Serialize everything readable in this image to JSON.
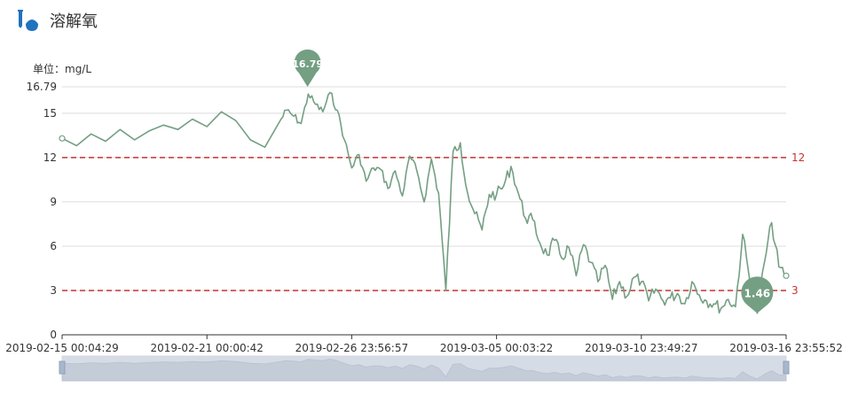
{
  "header": {
    "title": "溶解氧",
    "icon": "test-tube-drop-icon"
  },
  "chart_data": {
    "type": "line",
    "unit_label": "单位：mg/L",
    "ylim": [
      0,
      16.79
    ],
    "yticks": [
      "0",
      "3",
      "6",
      "9",
      "12",
      "15",
      "16.79"
    ],
    "xticks": [
      "2019-02-15 00:04:29",
      "2019-02-21 00:00:42",
      "2019-02-26 23:56:57",
      "2019-03-05 00:03:22",
      "2019-03-10 23:49:27",
      "2019-03-16 23:55:52"
    ],
    "grid": true,
    "series": [
      {
        "color": "#749f83",
        "x": [
          0.0,
          0.02,
          0.04,
          0.06,
          0.08,
          0.1,
          0.12,
          0.14,
          0.16,
          0.18,
          0.2,
          0.22,
          0.24,
          0.26,
          0.28,
          0.3,
          0.31,
          0.32,
          0.33,
          0.34,
          0.35,
          0.36,
          0.37,
          0.38,
          0.39,
          0.4,
          0.41,
          0.42,
          0.43,
          0.44,
          0.45,
          0.46,
          0.47,
          0.48,
          0.49,
          0.5,
          0.51,
          0.52,
          0.53,
          0.54,
          0.55,
          0.56,
          0.57,
          0.58,
          0.59,
          0.6,
          0.61,
          0.62,
          0.63,
          0.64,
          0.65,
          0.66,
          0.67,
          0.68,
          0.69,
          0.7,
          0.71,
          0.72,
          0.73,
          0.74,
          0.75,
          0.76,
          0.77,
          0.78,
          0.79,
          0.8,
          0.81,
          0.82,
          0.83,
          0.84,
          0.85,
          0.86,
          0.87,
          0.88,
          0.89,
          0.9,
          0.91,
          0.92,
          0.93,
          0.94,
          0.95,
          0.96,
          0.97,
          0.98,
          0.99,
          1.0
        ],
        "y": [
          13.3,
          12.8,
          13.6,
          13.1,
          13.9,
          13.2,
          13.8,
          14.2,
          13.9,
          14.6,
          14.1,
          15.1,
          14.5,
          13.2,
          12.7,
          14.4,
          15.2,
          14.8,
          14.3,
          16.3,
          15.6,
          15.1,
          16.4,
          15.2,
          13.2,
          11.3,
          12.2,
          10.4,
          11.3,
          11.2,
          9.9,
          11.1,
          9.4,
          12.1,
          11.1,
          9.0,
          11.9,
          9.6,
          3.0,
          12.4,
          13.0,
          9.6,
          8.2,
          7.1,
          9.5,
          9.5,
          10.1,
          11.4,
          9.6,
          7.9,
          7.8,
          6.2,
          5.4,
          6.4,
          5.2,
          5.9,
          4.0,
          6.1,
          4.9,
          3.6,
          4.7,
          2.4,
          3.6,
          2.6,
          3.9,
          3.6,
          2.3,
          3.1,
          2.3,
          2.5,
          2.8,
          2.1,
          3.6,
          2.7,
          2.3,
          2.1,
          1.8,
          2.4,
          1.9,
          6.8,
          3.6,
          1.46,
          4.9,
          7.6,
          4.6,
          4.0
        ],
        "markers": [
          {
            "label": "16.79",
            "x": 0.339,
            "y": 16.79
          },
          {
            "label": "1.46",
            "x": 0.96,
            "y": 1.46
          }
        ],
        "marklines": [
          {
            "label": "12",
            "y": 12,
            "color": "#c23531"
          },
          {
            "label": "3",
            "y": 3,
            "color": "#c23531"
          }
        ]
      }
    ],
    "datazoom": {
      "range": [
        0,
        100
      ]
    }
  }
}
